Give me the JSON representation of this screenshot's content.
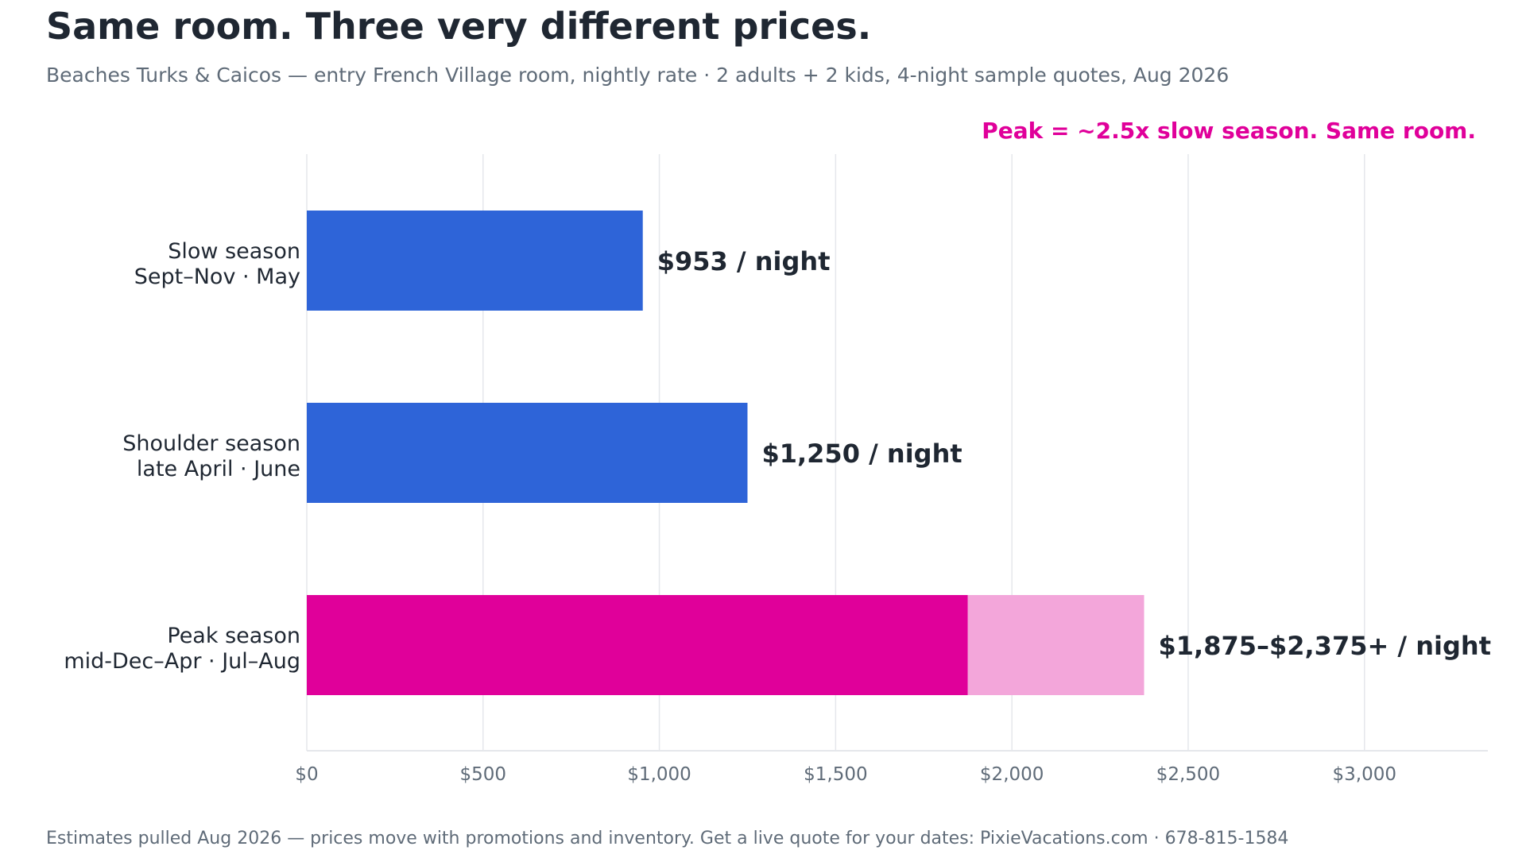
{
  "header": {
    "title": "Same room. Three very different prices.",
    "subtitle": "Beaches Turks & Caicos — entry French Village room, nightly rate · 2 adults + 2 kids, 4-night sample quotes, Aug 2026"
  },
  "chart_data": {
    "type": "bar",
    "orientation": "horizontal",
    "annotation": "Peak = ~2.5x slow season. Same room.",
    "categories": [
      {
        "line1": "Slow season",
        "line2": "Sept–Nov · May"
      },
      {
        "line1": "Shoulder season",
        "line2": "late April · June"
      },
      {
        "line1": "Peak season",
        "line2": "mid-Dec–Apr · Jul–Aug"
      }
    ],
    "bars": [
      {
        "low": 953,
        "high": null,
        "label": "$953 / night",
        "color": "#2e64d8"
      },
      {
        "low": 1250,
        "high": null,
        "label": "$1,250 / night",
        "color": "#2e64d8"
      },
      {
        "low": 1875,
        "high": 2375,
        "label": "$1,875–$2,375+ / night",
        "color": "#e0009a",
        "range_color": "#f3a6da"
      }
    ],
    "xlim": [
      0,
      3350
    ],
    "xticks": [
      {
        "value": 0,
        "label": "$0"
      },
      {
        "value": 500,
        "label": "$500"
      },
      {
        "value": 1000,
        "label": "$1,000"
      },
      {
        "value": 1500,
        "label": "$1,500"
      },
      {
        "value": 2000,
        "label": "$2,000"
      },
      {
        "value": 2500,
        "label": "$2,500"
      },
      {
        "value": 3000,
        "label": "$3,000"
      }
    ],
    "xlabel": "",
    "ylabel": "",
    "grid": "vertical",
    "colors": {
      "annotation": "#e0009a",
      "grid": "#e5e7eb",
      "text": "#1f2732",
      "muted": "#5f6b78"
    }
  },
  "footer": {
    "note": "Estimates pulled Aug 2026 — prices move with promotions and inventory. Get a live quote for your dates: PixieVacations.com · 678-815-1584"
  }
}
